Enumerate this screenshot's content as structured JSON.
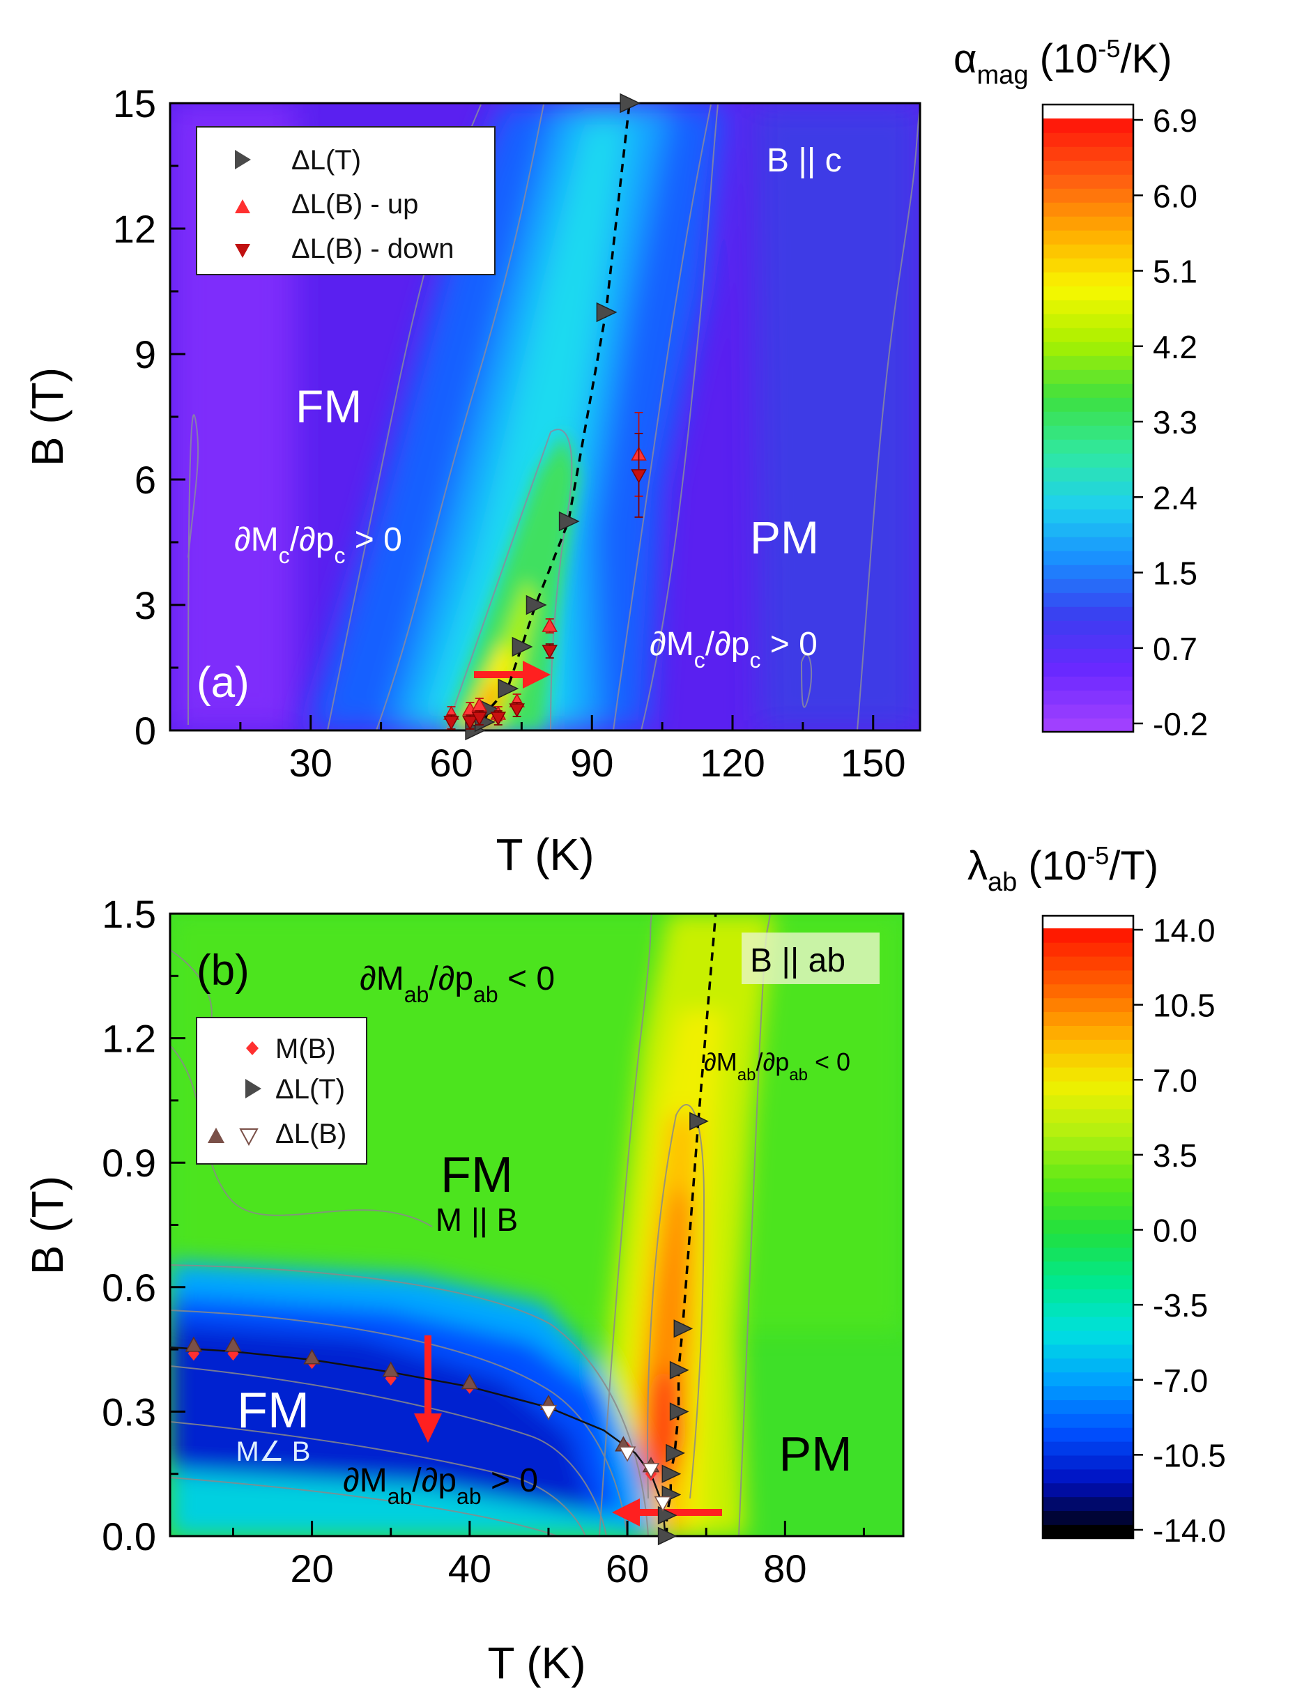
{
  "chart_data": [
    {
      "type": "heatmap",
      "panel_label": "(a)",
      "field_label": "B || c",
      "xlabel": "T (K)",
      "ylabel": "B (T)",
      "xlim": [
        0,
        160
      ],
      "ylim": [
        0,
        15
      ],
      "x_ticks": [
        30,
        60,
        90,
        120,
        150
      ],
      "y_ticks": [
        0,
        3,
        6,
        9,
        12,
        15
      ],
      "colorbar": {
        "title_symbol": "α",
        "title_sub": "mag",
        "title_unit_pre": " (10",
        "title_unit_exp": "-5",
        "title_unit_post": "/K)",
        "ticks": [
          "6.9",
          "6.0",
          "5.1",
          "4.2",
          "3.3",
          "2.4",
          "1.5",
          "0.7",
          "-0.2"
        ],
        "range": [
          -0.2,
          6.9
        ],
        "colors": [
          "#a040ff",
          "#6a28ff",
          "#3a3ef0",
          "#1a8cff",
          "#1ed0f0",
          "#30e8a0",
          "#3ee040",
          "#a8f000",
          "#f8f800",
          "#ffb000",
          "#ff6010",
          "#ff1a0a"
        ]
      },
      "legend": [
        "ΔL(T)",
        "ΔL(B) - up",
        "ΔL(B) - down"
      ],
      "region_labels": {
        "fm": "FM",
        "pm": "PM",
        "fm_deriv": "∂Mc/∂pc > 0",
        "pm_deriv": "∂Mc/∂pc > 0"
      },
      "series": [
        {
          "name": "ΔL(T)",
          "points": [
            [
              65,
              0
            ],
            [
              67,
              0.2
            ],
            [
              68,
              0.5
            ],
            [
              72,
              1
            ],
            [
              75,
              2
            ],
            [
              78,
              3
            ],
            [
              85,
              5
            ],
            [
              93,
              10
            ],
            [
              98,
              15
            ]
          ]
        },
        {
          "name": "ΔL(B) - up",
          "points": [
            [
              60,
              0.4
            ],
            [
              64,
              0.5
            ],
            [
              66,
              0.6
            ],
            [
              70,
              0.4
            ],
            [
              74,
              0.7
            ],
            [
              81,
              2.5
            ],
            [
              100,
              6.6
            ]
          ]
        },
        {
          "name": "ΔL(B) - down",
          "points": [
            [
              60,
              0.2
            ],
            [
              64,
              0.2
            ],
            [
              66,
              0.3
            ],
            [
              70,
              0.3
            ],
            [
              74,
              0.5
            ],
            [
              81,
              1.9
            ],
            [
              100,
              6.1
            ]
          ]
        }
      ]
    },
    {
      "type": "heatmap",
      "panel_label": "(b)",
      "field_label": "B || ab",
      "xlabel": "T (K)",
      "ylabel": "B (T)",
      "xlim": [
        2,
        95
      ],
      "ylim": [
        0,
        1.5
      ],
      "x_ticks": [
        20,
        40,
        60,
        80
      ],
      "y_ticks": [
        "0.0",
        "0.3",
        "0.6",
        "0.9",
        "1.2",
        "1.5"
      ],
      "colorbar": {
        "title_symbol": "λ",
        "title_sub": "ab",
        "title_unit_pre": " (10",
        "title_unit_exp": "-5",
        "title_unit_post": "/T)",
        "ticks": [
          "14.0",
          "10.5",
          "7.0",
          "3.5",
          "0.0",
          "-3.5",
          "-7.0",
          "-10.5",
          "-14.0"
        ],
        "range": [
          -14.0,
          14.0
        ],
        "colors": [
          "#000000",
          "#0010c0",
          "#0050ff",
          "#00a0ff",
          "#00e0e0",
          "#00e890",
          "#20e040",
          "#5ae818",
          "#b0f010",
          "#f0f000",
          "#ffb000",
          "#ff6000",
          "#ff1a00"
        ]
      },
      "legend": [
        "M(B)",
        "ΔL(T)",
        "ΔL(B)"
      ],
      "region_labels": {
        "fm_upper": "FM",
        "fm_upper_sub": "M || B",
        "fm_lower": "FM",
        "fm_lower_sub": "M∠ B",
        "pm": "PM",
        "top_deriv": "∂Mab/∂pab < 0",
        "right_deriv": "∂Mab/∂pab < 0",
        "bottom_deriv": "∂Mab/∂pab > 0"
      },
      "series": [
        {
          "name": "M(B)",
          "points": [
            [
              5,
              0.44
            ],
            [
              10,
              0.44
            ],
            [
              20,
              0.42
            ],
            [
              30,
              0.38
            ],
            [
              40,
              0.36
            ],
            [
              50,
              0.31
            ],
            [
              60,
              0.21
            ],
            [
              63,
              0.15
            ]
          ]
        },
        {
          "name": "ΔL(T)",
          "points": [
            [
              65,
              0
            ],
            [
              65,
              0.05
            ],
            [
              65.5,
              0.1
            ],
            [
              65.5,
              0.15
            ],
            [
              66,
              0.2
            ],
            [
              66.5,
              0.3
            ],
            [
              66.5,
              0.4
            ],
            [
              67,
              0.5
            ],
            [
              69,
              1.0
            ]
          ]
        },
        {
          "name": "ΔL(B) up",
          "points": [
            [
              5,
              0.46
            ],
            [
              10,
              0.46
            ],
            [
              20,
              0.43
            ],
            [
              30,
              0.4
            ],
            [
              40,
              0.37
            ],
            [
              50,
              0.32
            ],
            [
              59.5,
              0.22
            ],
            [
              63,
              0.17
            ]
          ]
        },
        {
          "name": "ΔL(B) down",
          "points": [
            [
              50,
              0.3
            ],
            [
              60,
              0.2
            ],
            [
              63,
              0.16
            ],
            [
              64.5,
              0.08
            ]
          ]
        }
      ]
    }
  ]
}
